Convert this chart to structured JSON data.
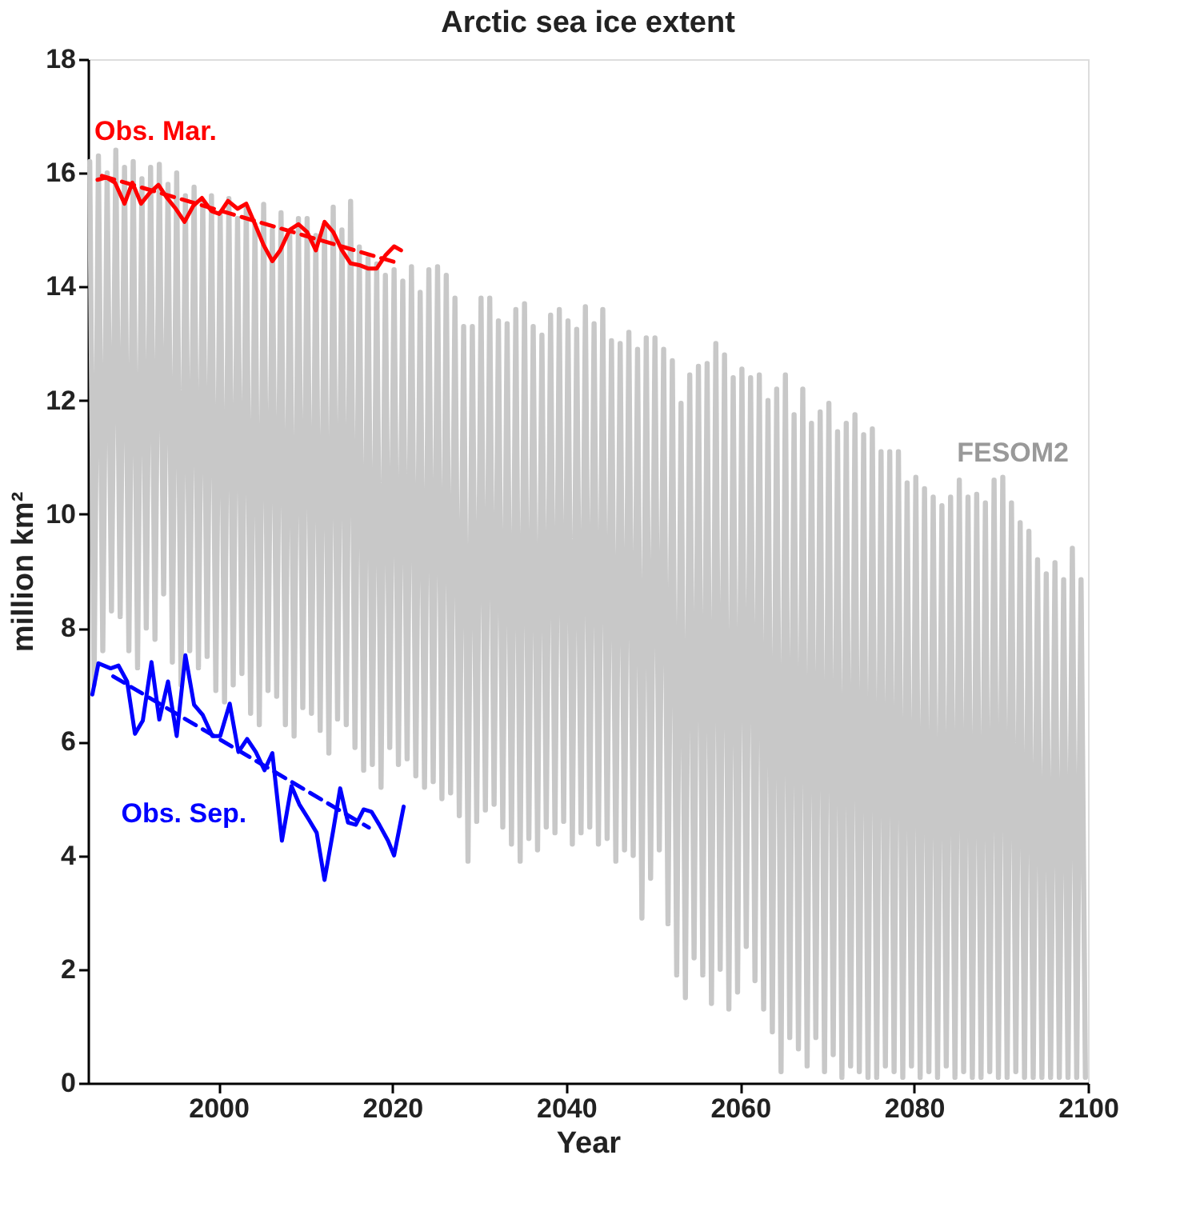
{
  "chart_data": {
    "type": "line",
    "title": "Arctic sea ice extent",
    "xlabel": "Year",
    "ylabel": "million km²",
    "xlim": [
      1985,
      2100
    ],
    "xticks": [
      2000,
      2020,
      2040,
      2060,
      2080,
      2100
    ],
    "ylim": [
      0,
      18
    ],
    "yticks": [
      0,
      2,
      4,
      6,
      8,
      10,
      12,
      14,
      16,
      18
    ],
    "grid": false,
    "series": [
      {
        "name": "FESOM2",
        "color": "#c8c8c8",
        "line_style": "solid",
        "x": [
          1985.2,
          1985.7,
          1986.2,
          1986.7,
          1987.2,
          1987.7,
          1988.2,
          1988.7,
          1989.2,
          1989.7,
          1990.2,
          1990.7,
          1991.2,
          1991.7,
          1992.2,
          1992.7,
          1993.2,
          1993.7,
          1994.2,
          1994.7,
          1995.2,
          1995.7,
          1996.2,
          1996.7,
          1997.2,
          1997.7,
          1998.2,
          1998.7,
          1999.2,
          1999.7,
          2000.2,
          2000.7,
          2001.2,
          2001.7,
          2002.2,
          2002.7,
          2003.2,
          2003.7,
          2004.2,
          2004.7,
          2005.2,
          2005.7,
          2006.2,
          2006.7,
          2007.2,
          2007.7,
          2008.2,
          2008.7,
          2009.2,
          2009.7,
          2010.2,
          2010.7,
          2011.2,
          2011.7,
          2012.2,
          2012.7,
          2013.2,
          2013.7,
          2014.2,
          2014.7,
          2015.2,
          2015.7,
          2016.2,
          2016.7,
          2017.2,
          2017.7,
          2018.2,
          2018.7,
          2019.2,
          2019.7,
          2020.2,
          2020.7,
          2021.2,
          2021.7,
          2022.2,
          2022.7,
          2023.2,
          2023.7,
          2024.2,
          2024.7,
          2025.2,
          2025.7,
          2026.2,
          2026.7,
          2027.2,
          2027.7,
          2028.2,
          2028.7,
          2029.2,
          2029.7,
          2030.2,
          2030.7,
          2031.2,
          2031.7,
          2032.2,
          2032.7,
          2033.2,
          2033.7,
          2034.2,
          2034.7,
          2035.2,
          2035.7,
          2036.2,
          2036.7,
          2037.2,
          2037.7,
          2038.2,
          2038.7,
          2039.2,
          2039.7,
          2040.2,
          2040.7,
          2041.2,
          2041.7,
          2042.2,
          2042.7,
          2043.2,
          2043.7,
          2044.2,
          2044.7,
          2045.2,
          2045.7,
          2046.2,
          2046.7,
          2047.2,
          2047.7,
          2048.2,
          2048.7,
          2049.2,
          2049.7,
          2050.2,
          2050.7,
          2051.2,
          2051.7,
          2052.2,
          2052.7,
          2053.2,
          2053.7,
          2054.2,
          2054.7,
          2055.2,
          2055.7,
          2056.2,
          2056.7,
          2057.2,
          2057.7,
          2058.2,
          2058.7,
          2059.2,
          2059.7,
          2060.2,
          2060.7,
          2061.2,
          2061.7,
          2062.2,
          2062.7,
          2063.2,
          2063.7,
          2064.2,
          2064.7,
          2065.2,
          2065.7,
          2066.2,
          2066.7,
          2067.2,
          2067.7,
          2068.2,
          2068.7,
          2069.2,
          2069.7,
          2070.2,
          2070.7,
          2071.2,
          2071.7,
          2072.2,
          2072.7,
          2073.2,
          2073.7,
          2074.2,
          2074.7,
          2075.2,
          2075.7,
          2076.2,
          2076.7,
          2077.2,
          2077.7,
          2078.2,
          2078.7,
          2079.2,
          2079.7,
          2080.2,
          2080.7,
          2081.2,
          2081.7,
          2082.2,
          2082.7,
          2083.2,
          2083.7,
          2084.2,
          2084.7,
          2085.2,
          2085.7,
          2086.2,
          2086.7,
          2087.2,
          2087.7,
          2088.2,
          2088.7,
          2089.2,
          2089.7,
          2090.2,
          2090.7,
          2091.2,
          2091.7,
          2092.2,
          2092.7,
          2093.2,
          2093.7,
          2094.2,
          2094.7,
          2095.2,
          2095.7,
          2096.2,
          2096.7,
          2097.2,
          2097.7,
          2098.2,
          2098.7,
          2099.2,
          2099.7
        ],
        "values": [
          16.2,
          7.0,
          16.3,
          7.6,
          16.0,
          8.3,
          16.4,
          8.2,
          16.1,
          7.6,
          16.2,
          7.3,
          15.9,
          8.0,
          16.1,
          7.8,
          16.15,
          8.6,
          15.8,
          7.4,
          16.0,
          7.0,
          15.6,
          7.6,
          15.75,
          7.3,
          15.5,
          7.5,
          15.6,
          6.9,
          15.3,
          6.7,
          15.55,
          7.0,
          15.2,
          7.2,
          15.4,
          6.5,
          15.1,
          6.3,
          15.45,
          6.9,
          15.0,
          6.8,
          15.3,
          6.3,
          14.9,
          6.1,
          15.2,
          6.6,
          15.2,
          6.5,
          14.9,
          6.2,
          15.1,
          5.8,
          15.4,
          6.4,
          15.0,
          6.3,
          15.5,
          5.9,
          14.7,
          5.5,
          14.5,
          5.6,
          14.4,
          5.2,
          14.2,
          5.9,
          14.3,
          5.6,
          14.1,
          5.7,
          14.35,
          5.4,
          13.9,
          5.2,
          14.3,
          5.3,
          14.35,
          5.0,
          14.2,
          5.1,
          13.8,
          4.7,
          13.3,
          3.9,
          13.3,
          4.6,
          13.8,
          4.8,
          13.8,
          4.9,
          13.4,
          4.5,
          13.35,
          4.2,
          13.6,
          3.9,
          13.7,
          4.3,
          13.3,
          4.1,
          13.15,
          4.5,
          13.5,
          4.4,
          13.6,
          4.6,
          13.4,
          4.2,
          13.25,
          4.4,
          13.65,
          4.5,
          13.35,
          4.2,
          13.6,
          4.3,
          13.05,
          3.9,
          13.0,
          4.1,
          13.2,
          4.0,
          12.9,
          2.9,
          13.1,
          3.6,
          13.1,
          4.1,
          12.9,
          2.8,
          12.7,
          1.9,
          11.95,
          1.5,
          12.45,
          2.2,
          12.6,
          1.9,
          12.65,
          1.4,
          13.0,
          2.0,
          12.8,
          1.3,
          12.4,
          1.6,
          12.55,
          2.4,
          12.4,
          1.8,
          12.45,
          1.3,
          12.0,
          0.9,
          12.2,
          0.2,
          12.45,
          0.8,
          11.75,
          0.6,
          12.2,
          0.3,
          11.6,
          0.8,
          11.8,
          0.2,
          11.95,
          0.5,
          11.45,
          0.1,
          11.6,
          0.3,
          11.75,
          0.2,
          11.4,
          0.1,
          11.5,
          0.1,
          11.1,
          0.3,
          11.1,
          0.2,
          11.1,
          0.1,
          10.55,
          0.3,
          10.65,
          0.1,
          10.45,
          0.2,
          10.3,
          0.1,
          10.15,
          0.3,
          10.3,
          0.1,
          10.6,
          0.2,
          10.3,
          0.1,
          10.35,
          0.1,
          10.2,
          0.2,
          10.6,
          0.1,
          10.65,
          0.1,
          10.2,
          0.2,
          9.85,
          0.1,
          9.7,
          0.1,
          9.2,
          0.1,
          8.95,
          0.1,
          9.15,
          0.1,
          8.85,
          0.1,
          9.4,
          0.1,
          8.85,
          0.1
        ]
      },
      {
        "name": "Obs. Mar.",
        "color": "#ff0000",
        "line_style": "solid",
        "x": [
          1986.1,
          1987.1,
          1988.1,
          1989.2,
          1990.1,
          1991.1,
          1992.1,
          1993.1,
          1994.1,
          1995.1,
          1996.1,
          1997.1,
          1998.1,
          1999.2,
          2000.1,
          2001.1,
          2002.2,
          2003.2,
          2004.2,
          2005.2,
          2006.2,
          2007.1,
          2008.2,
          2009.2,
          2010.2,
          2011.2,
          2012.2,
          2013.2,
          2014.2,
          2015.2,
          2016.2,
          2017.2,
          2018.2,
          2019.2,
          2020.2,
          2021.0
        ],
        "values": [
          15.88,
          15.92,
          15.83,
          15.46,
          15.83,
          15.46,
          15.65,
          15.79,
          15.56,
          15.37,
          15.14,
          15.42,
          15.56,
          15.33,
          15.28,
          15.51,
          15.37,
          15.46,
          15.1,
          14.73,
          14.45,
          14.64,
          15.0,
          15.1,
          14.96,
          14.64,
          15.14,
          14.96,
          14.64,
          14.41,
          14.38,
          14.32,
          14.32,
          14.55,
          14.71,
          14.64
        ]
      },
      {
        "color": "#ff0000",
        "line_style": "dashed",
        "x": [
          1986.6,
          2021.0
        ],
        "values": [
          15.95,
          14.4
        ]
      },
      {
        "name": "Obs. Sep.",
        "color": "#0000ff",
        "line_style": "solid",
        "x": [
          1985.5,
          1986.2,
          1987.6,
          1988.5,
          1989.5,
          1990.4,
          1991.3,
          1992.3,
          1993.2,
          1994.2,
          1995.2,
          1996.2,
          1997.2,
          1998.2,
          1999.3,
          2000.2,
          2001.3,
          2002.3,
          2003.3,
          2004.3,
          2005.3,
          2006.2,
          2007.3,
          2008.4,
          2009.3,
          2010.4,
          2011.3,
          2012.2,
          2013.2,
          2014.0,
          2014.9,
          2015.8,
          2016.7,
          2017.6,
          2018.5,
          2019.5,
          2020.2,
          2021.3
        ],
        "values": [
          6.83,
          7.38,
          7.29,
          7.34,
          7.06,
          6.14,
          6.37,
          7.4,
          6.39,
          7.06,
          6.1,
          7.52,
          6.65,
          6.47,
          6.1,
          6.1,
          6.67,
          5.82,
          6.05,
          5.82,
          5.5,
          5.8,
          4.26,
          5.22,
          4.9,
          4.63,
          4.4,
          3.57,
          4.44,
          5.18,
          4.58,
          4.54,
          4.81,
          4.77,
          4.54,
          4.26,
          4.0,
          4.86
        ]
      },
      {
        "color": "#0000ff",
        "line_style": "dashed",
        "x": [
          1987.9,
          2017.3
        ],
        "values": [
          7.15,
          4.49
        ]
      }
    ]
  }
}
